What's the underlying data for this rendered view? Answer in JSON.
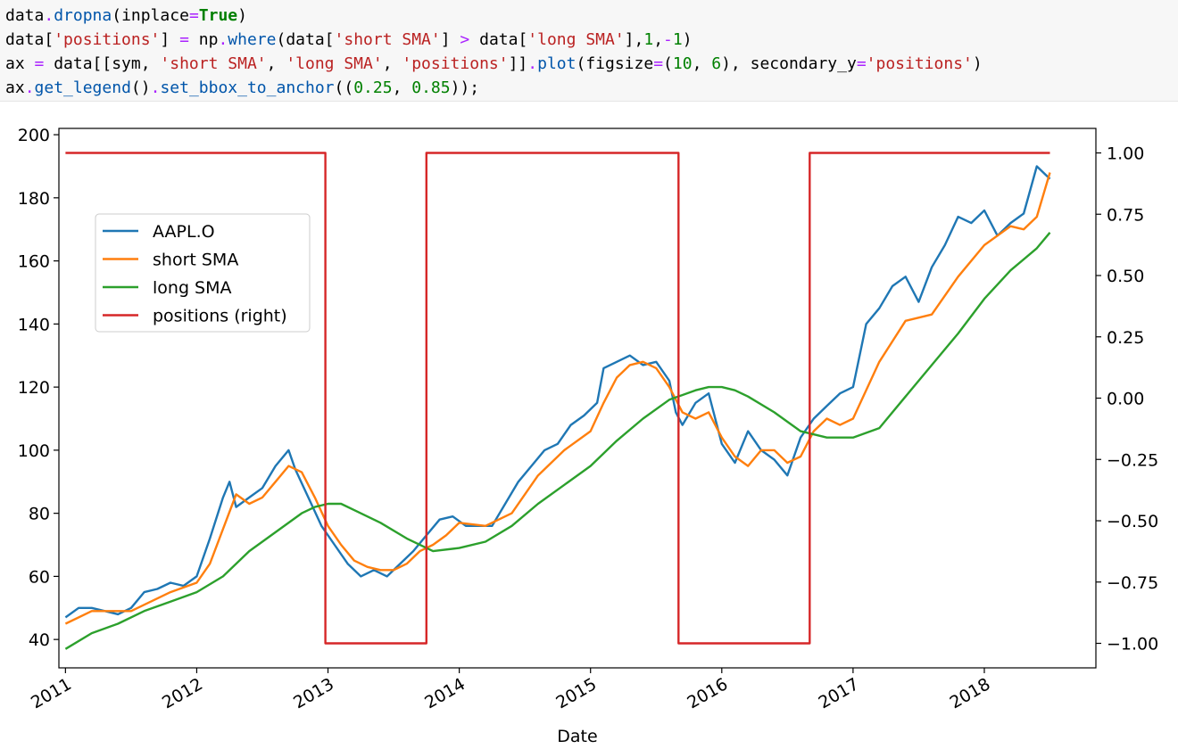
{
  "code": {
    "lines": [
      [
        {
          "t": "data",
          "c": ""
        },
        {
          "t": ".",
          "c": "op"
        },
        {
          "t": "dropna",
          "c": "fn"
        },
        {
          "t": "(inplace",
          "c": ""
        },
        {
          "t": "=",
          "c": "op"
        },
        {
          "t": "True",
          "c": "kw"
        },
        {
          "t": ")",
          "c": ""
        }
      ],
      [
        {
          "t": "data[",
          "c": ""
        },
        {
          "t": "'positions'",
          "c": "str"
        },
        {
          "t": "] ",
          "c": ""
        },
        {
          "t": "=",
          "c": "op"
        },
        {
          "t": " np",
          "c": ""
        },
        {
          "t": ".",
          "c": "op"
        },
        {
          "t": "where",
          "c": "fn"
        },
        {
          "t": "(data[",
          "c": ""
        },
        {
          "t": "'short SMA'",
          "c": "str"
        },
        {
          "t": "] ",
          "c": ""
        },
        {
          "t": ">",
          "c": "op"
        },
        {
          "t": " data[",
          "c": ""
        },
        {
          "t": "'long SMA'",
          "c": "str"
        },
        {
          "t": "],",
          "c": ""
        },
        {
          "t": "1",
          "c": "num"
        },
        {
          "t": ",",
          "c": ""
        },
        {
          "t": "-",
          "c": "op"
        },
        {
          "t": "1",
          "c": "num"
        },
        {
          "t": ")",
          "c": ""
        }
      ],
      [
        {
          "t": "ax ",
          "c": ""
        },
        {
          "t": "=",
          "c": "op"
        },
        {
          "t": " data[[sym, ",
          "c": ""
        },
        {
          "t": "'short SMA'",
          "c": "str"
        },
        {
          "t": ", ",
          "c": ""
        },
        {
          "t": "'long SMA'",
          "c": "str"
        },
        {
          "t": ", ",
          "c": ""
        },
        {
          "t": "'positions'",
          "c": "str"
        },
        {
          "t": "]]",
          "c": ""
        },
        {
          "t": ".",
          "c": "op"
        },
        {
          "t": "plot",
          "c": "fn"
        },
        {
          "t": "(figsize",
          "c": ""
        },
        {
          "t": "=",
          "c": "op"
        },
        {
          "t": "(",
          "c": ""
        },
        {
          "t": "10",
          "c": "num"
        },
        {
          "t": ", ",
          "c": ""
        },
        {
          "t": "6",
          "c": "num"
        },
        {
          "t": "), secondary_y",
          "c": ""
        },
        {
          "t": "=",
          "c": "op"
        },
        {
          "t": "'positions'",
          "c": "str"
        },
        {
          "t": ")",
          "c": ""
        }
      ],
      [
        {
          "t": "ax",
          "c": ""
        },
        {
          "t": ".",
          "c": "op"
        },
        {
          "t": "get_legend",
          "c": "fn"
        },
        {
          "t": "()",
          "c": ""
        },
        {
          "t": ".",
          "c": "op"
        },
        {
          "t": "set_bbox_to_anchor",
          "c": "fn"
        },
        {
          "t": "((",
          "c": ""
        },
        {
          "t": "0.25",
          "c": "num"
        },
        {
          "t": ", ",
          "c": ""
        },
        {
          "t": "0.85",
          "c": "num"
        },
        {
          "t": "));",
          "c": ""
        }
      ]
    ]
  },
  "chart_data": {
    "type": "line",
    "xlabel": "Date",
    "xlim": [
      2010.95,
      2018.85
    ],
    "xticks": [
      2011,
      2012,
      2013,
      2014,
      2015,
      2016,
      2017,
      2018
    ],
    "xtick_labels": [
      "2011",
      "2012",
      "2013",
      "2014",
      "2015",
      "2016",
      "2017",
      "2018"
    ],
    "ylim_left": [
      31,
      202
    ],
    "yticks_left": [
      40,
      60,
      80,
      100,
      120,
      140,
      160,
      180,
      200
    ],
    "ylim_right": [
      -1.1,
      1.1
    ],
    "yticks_right": [
      -1.0,
      -0.75,
      -0.5,
      -0.25,
      0.0,
      0.25,
      0.5,
      0.75,
      1.0
    ],
    "ytick_labels_right": [
      "−1.00",
      "−0.75",
      "−0.50",
      "−0.25",
      "0.00",
      "0.25",
      "0.50",
      "0.75",
      "1.00"
    ],
    "legend_position": "upper-left",
    "series": [
      {
        "name": "AAPL.O",
        "color": "#1f77b4",
        "axis": "left",
        "x": [
          2011.0,
          2011.1,
          2011.2,
          2011.3,
          2011.4,
          2011.5,
          2011.6,
          2011.7,
          2011.8,
          2011.9,
          2012.0,
          2012.1,
          2012.2,
          2012.25,
          2012.3,
          2012.4,
          2012.5,
          2012.6,
          2012.7,
          2012.75,
          2012.85,
          2012.95,
          2013.05,
          2013.15,
          2013.25,
          2013.35,
          2013.45,
          2013.55,
          2013.65,
          2013.75,
          2013.85,
          2013.95,
          2014.05,
          2014.15,
          2014.25,
          2014.35,
          2014.45,
          2014.55,
          2014.65,
          2014.75,
          2014.85,
          2014.95,
          2015.05,
          2015.1,
          2015.2,
          2015.3,
          2015.4,
          2015.5,
          2015.6,
          2015.65,
          2015.7,
          2015.8,
          2015.9,
          2016.0,
          2016.1,
          2016.2,
          2016.3,
          2016.4,
          2016.5,
          2016.6,
          2016.7,
          2016.8,
          2016.9,
          2017.0,
          2017.1,
          2017.2,
          2017.3,
          2017.4,
          2017.5,
          2017.6,
          2017.7,
          2017.8,
          2017.9,
          2018.0,
          2018.1,
          2018.2,
          2018.3,
          2018.4,
          2018.5
        ],
        "y": [
          47,
          50,
          50,
          49,
          48,
          50,
          55,
          56,
          58,
          57,
          60,
          72,
          85,
          90,
          82,
          85,
          88,
          95,
          100,
          94,
          85,
          76,
          70,
          64,
          60,
          62,
          60,
          64,
          68,
          73,
          78,
          79,
          76,
          76,
          76,
          83,
          90,
          95,
          100,
          102,
          108,
          111,
          115,
          126,
          128,
          130,
          127,
          128,
          122,
          112,
          108,
          115,
          118,
          102,
          96,
          106,
          100,
          97,
          92,
          104,
          110,
          114,
          118,
          120,
          140,
          145,
          152,
          155,
          147,
          158,
          165,
          174,
          172,
          176,
          168,
          172,
          175,
          190,
          186
        ]
      },
      {
        "name": "short SMA",
        "color": "#ff7f0e",
        "axis": "left",
        "x": [
          2011.0,
          2011.2,
          2011.5,
          2011.8,
          2012.0,
          2012.1,
          2012.2,
          2012.3,
          2012.4,
          2012.5,
          2012.6,
          2012.7,
          2012.8,
          2012.9,
          2013.0,
          2013.1,
          2013.2,
          2013.3,
          2013.4,
          2013.5,
          2013.6,
          2013.7,
          2013.8,
          2013.9,
          2014.0,
          2014.2,
          2014.4,
          2014.6,
          2014.8,
          2015.0,
          2015.1,
          2015.2,
          2015.3,
          2015.4,
          2015.5,
          2015.6,
          2015.7,
          2015.8,
          2015.9,
          2016.0,
          2016.1,
          2016.2,
          2016.3,
          2016.4,
          2016.5,
          2016.6,
          2016.7,
          2016.8,
          2016.9,
          2017.0,
          2017.2,
          2017.4,
          2017.6,
          2017.8,
          2018.0,
          2018.2,
          2018.3,
          2018.4,
          2018.5
        ],
        "y": [
          45,
          49,
          49,
          55,
          58,
          64,
          75,
          86,
          83,
          85,
          90,
          95,
          93,
          85,
          76,
          70,
          65,
          63,
          62,
          62,
          64,
          68,
          70,
          73,
          77,
          76,
          80,
          92,
          100,
          106,
          115,
          123,
          127,
          128,
          126,
          120,
          112,
          110,
          112,
          104,
          98,
          95,
          100,
          100,
          96,
          98,
          106,
          110,
          108,
          110,
          128,
          141,
          143,
          155,
          165,
          171,
          170,
          174,
          188
        ]
      },
      {
        "name": "long SMA",
        "color": "#2ca02c",
        "axis": "left",
        "x": [
          2011.0,
          2011.2,
          2011.4,
          2011.6,
          2011.8,
          2012.0,
          2012.2,
          2012.4,
          2012.6,
          2012.8,
          2012.9,
          2013.0,
          2013.1,
          2013.2,
          2013.4,
          2013.6,
          2013.8,
          2014.0,
          2014.2,
          2014.4,
          2014.6,
          2014.8,
          2015.0,
          2015.2,
          2015.4,
          2015.6,
          2015.8,
          2015.9,
          2016.0,
          2016.1,
          2016.2,
          2016.4,
          2016.6,
          2016.8,
          2017.0,
          2017.2,
          2017.4,
          2017.6,
          2017.8,
          2018.0,
          2018.2,
          2018.4,
          2018.5
        ],
        "y": [
          37,
          42,
          45,
          49,
          52,
          55,
          60,
          68,
          74,
          80,
          82,
          83,
          83,
          81,
          77,
          72,
          68,
          69,
          71,
          76,
          83,
          89,
          95,
          103,
          110,
          116,
          119,
          120,
          120,
          119,
          117,
          112,
          106,
          104,
          104,
          107,
          117,
          127,
          137,
          148,
          157,
          164,
          169
        ]
      },
      {
        "name": "positions (right)",
        "color": "#d62728",
        "axis": "right",
        "x": [
          2011.0,
          2012.98,
          2012.98,
          2013.75,
          2013.75,
          2015.67,
          2015.67,
          2016.67,
          2016.67,
          2018.5
        ],
        "y": [
          1,
          1,
          -1,
          -1,
          1,
          1,
          -1,
          -1,
          1,
          1
        ]
      }
    ]
  }
}
